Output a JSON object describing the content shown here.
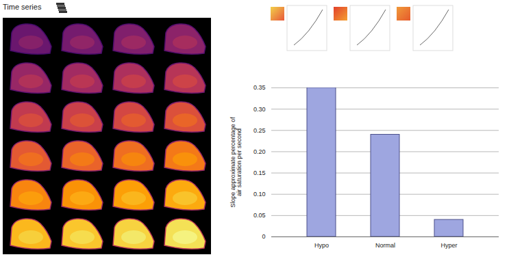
{
  "chart_data": {
    "type": "bar",
    "annotations": [
      "Time series"
    ],
    "ylabel": "Slope approximate percentage of air saturation per second",
    "categories": [
      "Hypo",
      "Normal",
      "Hyper"
    ],
    "values": [
      0.35,
      0.24,
      0.04
    ],
    "color": "#9ea6e0",
    "ylim": [
      0,
      0.35
    ],
    "yticks": [
      0,
      0.05,
      {
        "value": 0.1,
        "label": "0.10"
      },
      0.15,
      {
        "value": 0.2,
        "label": "0.20"
      },
      0.25,
      {
        "value": 0.3,
        "label": "0.30"
      },
      0.35
    ],
    "grid": true
  }
}
